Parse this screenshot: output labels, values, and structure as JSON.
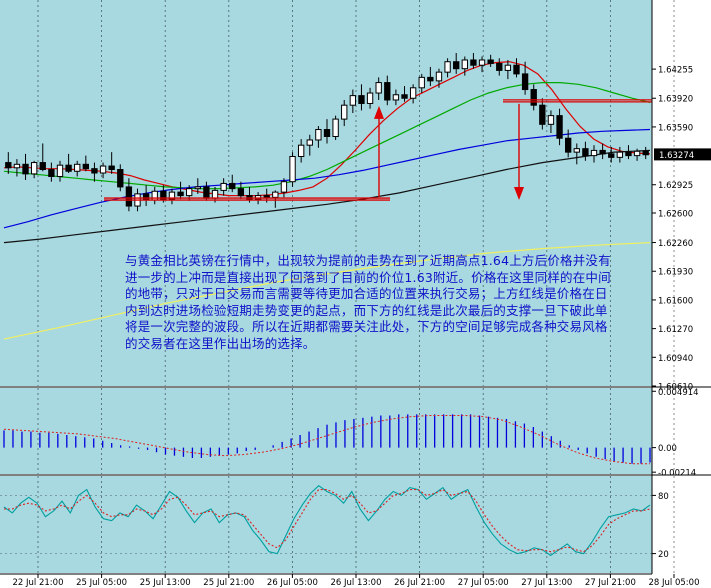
{
  "chart_data": [
    {
      "type": "line",
      "panel": "price",
      "ylim": [
        1.6061,
        1.6505
      ],
      "y_ticks": [
        "1.64255",
        "1.63920",
        "1.63590",
        "1.63274",
        "1.62925",
        "1.62600",
        "1.62260",
        "1.61930",
        "1.61600",
        "1.61270",
        "1.60940",
        "1.60610"
      ],
      "last_price": "1.63274",
      "candles_ohlc": [
        [
          1.6318,
          1.633,
          1.6305,
          1.6312
        ],
        [
          1.6312,
          1.6322,
          1.6302,
          1.6316
        ],
        [
          1.6316,
          1.6328,
          1.6298,
          1.6305
        ],
        [
          1.6305,
          1.632,
          1.63,
          1.6318
        ],
        [
          1.6318,
          1.634,
          1.6308,
          1.631
        ],
        [
          1.631,
          1.6318,
          1.6296,
          1.6302
        ],
        [
          1.6302,
          1.632,
          1.6296,
          1.6315
        ],
        [
          1.6315,
          1.6328,
          1.6306,
          1.6308
        ],
        [
          1.6308,
          1.632,
          1.6302,
          1.6316
        ],
        [
          1.6316,
          1.6326,
          1.6308,
          1.6311
        ],
        [
          1.6311,
          1.6318,
          1.6296,
          1.6306
        ],
        [
          1.6306,
          1.6318,
          1.63,
          1.6314
        ],
        [
          1.6314,
          1.633,
          1.6305,
          1.631
        ],
        [
          1.631,
          1.6316,
          1.6285,
          1.629
        ],
        [
          1.629,
          1.63,
          1.6262,
          1.6268
        ],
        [
          1.6268,
          1.6288,
          1.6262,
          1.6282
        ],
        [
          1.6282,
          1.6292,
          1.6268,
          1.6275
        ],
        [
          1.6275,
          1.629,
          1.627,
          1.6285
        ],
        [
          1.6285,
          1.6292,
          1.6272,
          1.6276
        ],
        [
          1.6276,
          1.6288,
          1.627,
          1.6284
        ],
        [
          1.6284,
          1.6296,
          1.6276,
          1.628
        ],
        [
          1.628,
          1.6292,
          1.6274,
          1.6288
        ],
        [
          1.6288,
          1.63,
          1.6282,
          1.629
        ],
        [
          1.629,
          1.6296,
          1.6274,
          1.6277
        ],
        [
          1.6277,
          1.629,
          1.6272,
          1.6286
        ],
        [
          1.6286,
          1.63,
          1.628,
          1.6294
        ],
        [
          1.6294,
          1.6304,
          1.6284,
          1.6288
        ],
        [
          1.6288,
          1.6296,
          1.6276,
          1.628
        ],
        [
          1.628,
          1.629,
          1.6272,
          1.6276
        ],
        [
          1.6276,
          1.6284,
          1.627,
          1.628
        ],
        [
          1.628,
          1.6288,
          1.6272,
          1.6278
        ],
        [
          1.6278,
          1.6286,
          1.6266,
          1.6284
        ],
        [
          1.6284,
          1.63,
          1.6278,
          1.6296
        ],
        [
          1.6296,
          1.633,
          1.629,
          1.6325
        ],
        [
          1.6325,
          1.6345,
          1.6318,
          1.6338
        ],
        [
          1.6338,
          1.635,
          1.6326,
          1.6344
        ],
        [
          1.6344,
          1.636,
          1.6335,
          1.6356
        ],
        [
          1.6356,
          1.6368,
          1.634,
          1.6348
        ],
        [
          1.6348,
          1.6372,
          1.6344,
          1.6368
        ],
        [
          1.6368,
          1.639,
          1.636,
          1.6384
        ],
        [
          1.6384,
          1.6402,
          1.6375,
          1.6395
        ],
        [
          1.6395,
          1.6408,
          1.6378,
          1.6386
        ],
        [
          1.6386,
          1.6404,
          1.638,
          1.6398
        ],
        [
          1.6398,
          1.6416,
          1.639,
          1.641
        ],
        [
          1.641,
          1.6418,
          1.6384,
          1.639
        ],
        [
          1.639,
          1.6402,
          1.6384,
          1.6396
        ],
        [
          1.6396,
          1.6406,
          1.6388,
          1.6392
        ],
        [
          1.6392,
          1.6408,
          1.6386,
          1.6404
        ],
        [
          1.6404,
          1.642,
          1.6398,
          1.6416
        ],
        [
          1.6416,
          1.6428,
          1.6406,
          1.6412
        ],
        [
          1.6412,
          1.6426,
          1.6404,
          1.6422
        ],
        [
          1.6422,
          1.6438,
          1.6416,
          1.6434
        ],
        [
          1.6434,
          1.6444,
          1.642,
          1.6426
        ],
        [
          1.6426,
          1.644,
          1.6418,
          1.6436
        ],
        [
          1.6436,
          1.6444,
          1.6426,
          1.643
        ],
        [
          1.643,
          1.644,
          1.6422,
          1.6436
        ],
        [
          1.6436,
          1.6442,
          1.6428,
          1.6432
        ],
        [
          1.6432,
          1.6438,
          1.6418,
          1.6424
        ],
        [
          1.6424,
          1.6436,
          1.6414,
          1.643
        ],
        [
          1.643,
          1.6438,
          1.6416,
          1.642
        ],
        [
          1.642,
          1.6434,
          1.6396,
          1.6402
        ],
        [
          1.6402,
          1.6408,
          1.6378,
          1.6384
        ],
        [
          1.6384,
          1.6392,
          1.6356,
          1.6362
        ],
        [
          1.6362,
          1.6378,
          1.6352,
          1.6372
        ],
        [
          1.6372,
          1.638,
          1.6338,
          1.6346
        ],
        [
          1.6346,
          1.6356,
          1.6324,
          1.633
        ],
        [
          1.633,
          1.634,
          1.6316,
          1.6334
        ],
        [
          1.6334,
          1.6342,
          1.632,
          1.6326
        ],
        [
          1.6326,
          1.6338,
          1.6318,
          1.6332
        ],
        [
          1.6332,
          1.634,
          1.6322,
          1.6328
        ],
        [
          1.6328,
          1.6336,
          1.6318,
          1.6324
        ],
        [
          1.6324,
          1.6336,
          1.6318,
          1.633
        ],
        [
          1.633,
          1.6338,
          1.6322,
          1.6326
        ],
        [
          1.6326,
          1.6334,
          1.632,
          1.6331
        ],
        [
          1.6331,
          1.6336,
          1.6322,
          1.6327
        ]
      ],
      "moving_averages": [
        {
          "color": "#dd0000",
          "values": [
            1.6312,
            1.6313,
            1.6312,
            1.6311,
            1.6311,
            1.631,
            1.6309,
            1.6308,
            1.6306,
            1.6303,
            1.6298,
            1.6294,
            1.629,
            1.6287,
            1.6284,
            1.6282,
            1.628,
            1.628,
            1.628,
            1.6281,
            1.6283,
            1.6286,
            1.629,
            1.63,
            1.6315,
            1.6332,
            1.635,
            1.6366,
            1.638,
            1.6392,
            1.64,
            1.6408,
            1.6416,
            1.6424,
            1.643,
            1.6433,
            1.6434,
            1.643,
            1.642,
            1.6402,
            1.638,
            1.636,
            1.6345,
            1.6336,
            1.6331,
            1.6329,
            1.6328
          ]
        },
        {
          "color": "#00aa00",
          "values": [
            1.6308,
            1.6306,
            1.6304,
            1.6302,
            1.63,
            1.6298,
            1.6296,
            1.6294,
            1.6292,
            1.629,
            1.6289,
            1.6288,
            1.6288,
            1.6289,
            1.629,
            1.6292,
            1.6296,
            1.6302,
            1.631,
            1.632,
            1.633,
            1.634,
            1.635,
            1.636,
            1.637,
            1.638,
            1.639,
            1.6398,
            1.6404,
            1.6408,
            1.641,
            1.641,
            1.6408,
            1.6404,
            1.6398,
            1.6392,
            1.6387
          ]
        },
        {
          "color": "#0000dd",
          "values": [
            1.6243,
            1.625,
            1.6258,
            1.6265,
            1.6272,
            1.6278,
            1.6283,
            1.6287,
            1.629,
            1.6292,
            1.6294,
            1.6296,
            1.6298,
            1.63,
            1.6304,
            1.6309,
            1.6315,
            1.6321,
            1.6327,
            1.6333,
            1.6338,
            1.6343,
            1.6346,
            1.6349,
            1.6352,
            1.6354,
            1.6355,
            1.6356
          ]
        },
        {
          "color": "#111111",
          "values": [
            1.6226,
            1.623,
            1.6235,
            1.624,
            1.6245,
            1.625,
            1.6255,
            1.626,
            1.6265,
            1.627,
            1.6276,
            1.6283,
            1.6292,
            1.6301,
            1.631,
            1.6318,
            1.6324,
            1.633,
            1.6332
          ]
        },
        {
          "color": "#f0f060",
          "values": [
            1.6115,
            1.6128,
            1.6142,
            1.6156,
            1.6168,
            1.618,
            1.619,
            1.6199,
            1.6207,
            1.6214,
            1.6219,
            1.6223,
            1.6226
          ]
        }
      ],
      "support_line": 1.6276,
      "resistance_line": 1.6389,
      "projection_low": 1.6275
    },
    {
      "type": "bar",
      "panel": "macd",
      "ylim": [
        -0.0023,
        0.0052
      ],
      "y_ticks": [
        "0.004914",
        "0.00",
        "-0.00214"
      ],
      "histogram": [
        0.0015,
        0.0015,
        0.0014,
        0.0014,
        0.0013,
        0.0013,
        0.0012,
        0.0011,
        0.001,
        0.0009,
        0.0008,
        0.0006,
        0.0004,
        0.0002,
        0.0001,
        -0.0001,
        -0.0002,
        -0.0004,
        -0.0006,
        -0.0007,
        -0.0008,
        -0.0009,
        -0.0009,
        -0.0008,
        -0.0007,
        -0.0006,
        -0.0005,
        -0.0003,
        -0.0002,
        0.0,
        0.0002,
        0.0005,
        0.0008,
        0.0011,
        0.0014,
        0.0017,
        0.002,
        0.0022,
        0.0024,
        0.0025,
        0.0026,
        0.0027,
        0.0028,
        0.0028,
        0.0029,
        0.0029,
        0.0029,
        0.0029,
        0.0029,
        0.0029,
        0.0029,
        0.0029,
        0.0029,
        0.0028,
        0.0027,
        0.0026,
        0.0025,
        0.0023,
        0.0021,
        0.0018,
        0.0014,
        0.001,
        0.0006,
        0.0002,
        -0.0002,
        -0.0005,
        -0.0008,
        -0.001,
        -0.0012,
        -0.0013,
        -0.0014,
        -0.0014,
        -0.0013
      ],
      "signal": [
        0.0016,
        0.0015,
        0.0014,
        0.0013,
        0.0012,
        0.001,
        0.0008,
        0.0005,
        0.0002,
        -0.0001,
        -0.0004,
        -0.0006,
        -0.0007,
        -0.0006,
        -0.0004,
        -0.0001,
        0.0003,
        0.0008,
        0.0013,
        0.0018,
        0.0022,
        0.0025,
        0.0027,
        0.0028,
        0.0028,
        0.0028,
        0.0027,
        0.0024,
        0.0018,
        0.0011,
        0.0003,
        -0.0004,
        -0.0009,
        -0.0012,
        -0.0014,
        -0.0014
      ]
    },
    {
      "type": "line",
      "panel": "oscillator",
      "ylim": [
        0,
        100
      ],
      "y_ticks": [
        "80",
        "20"
      ],
      "series": [
        {
          "color": "#00a0a0",
          "values": [
            68,
            62,
            72,
            78,
            72,
            58,
            64,
            74,
            62,
            80,
            86,
            68,
            56,
            54,
            62,
            58,
            70,
            64,
            56,
            70,
            84,
            78,
            64,
            52,
            62,
            66,
            52,
            60,
            62,
            58,
            44,
            34,
            22,
            20,
            38,
            56,
            70,
            82,
            90,
            84,
            80,
            72,
            84,
            66,
            54,
            64,
            76,
            84,
            80,
            88,
            86,
            76,
            82,
            88,
            76,
            82,
            86,
            68,
            52,
            40,
            30,
            24,
            20,
            22,
            26,
            24,
            18,
            24,
            30,
            22,
            20,
            32,
            46,
            58,
            60,
            62,
            66,
            64,
            70
          ]
        },
        {
          "color": "#dd2222",
          "values": [
            66,
            66,
            70,
            72,
            70,
            64,
            66,
            70,
            66,
            74,
            80,
            72,
            62,
            58,
            60,
            60,
            66,
            64,
            60,
            66,
            76,
            78,
            70,
            60,
            62,
            64,
            58,
            60,
            62,
            60,
            50,
            40,
            30,
            26,
            34,
            48,
            62,
            76,
            86,
            86,
            82,
            76,
            80,
            72,
            62,
            64,
            72,
            80,
            82,
            86,
            86,
            80,
            82,
            86,
            80,
            82,
            84,
            74,
            60,
            48,
            38,
            30,
            24,
            23,
            24,
            24,
            22,
            24,
            27,
            24,
            22,
            28,
            38,
            50,
            56,
            60,
            64,
            64,
            66
          ]
        }
      ]
    }
  ],
  "x_labels": [
    "22 Jul 21:00",
    "25 Jul 05:00",
    "25 Jul 13:00",
    "25 Jul 21:00",
    "26 Jul 05:00",
    "26 Jul 13:00",
    "26 Jul 21:00",
    "27 Jul 05:00",
    "27 Jul 13:00",
    "27 Jul 21:00",
    "28 Jul 05:00"
  ],
  "annotation": "与黄金相比英镑在行情中，出现较为提前的走势在到了近期高点1.64上方后价格并没有进一步的上冲而是直接出现了回落到了目前的价位1.63附近。价格在这里同样的在中间的地带，只对于日交易而言需要等待更加合适的位置来执行交易；上方红线是价格在日内到达时进场检验短期走势变更的起点，而下方的红线是此次最后的支撑一旦下破此单将是一次完整的波段。所以在近期都需要关注此处，下方的空间足够完成各种交易风格的交易者在这里作出出场的选择。",
  "colors": {
    "background": "#ffffff",
    "plot": "#a8d8e0",
    "axis_text": "#000000",
    "bull": "#ffffff",
    "bear": "#000000",
    "line": "#dd0000",
    "annotation": "#1010c8"
  }
}
